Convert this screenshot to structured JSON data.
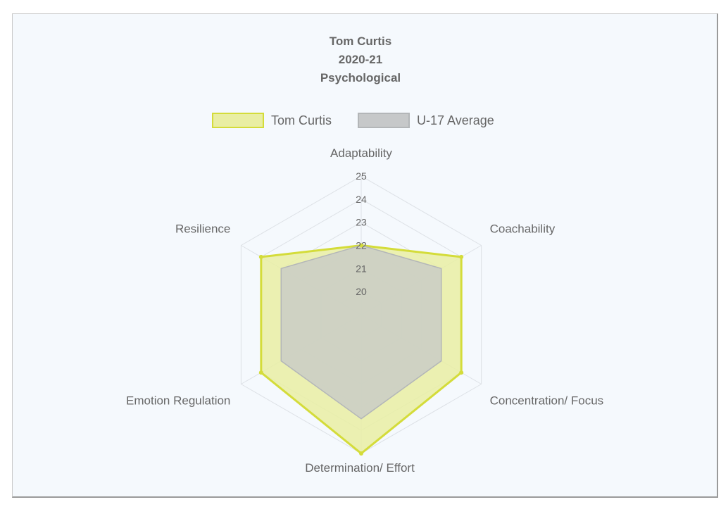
{
  "chart_data": {
    "type": "radar",
    "title_lines": [
      "Tom Curtis",
      "2020-21",
      "Psychological"
    ],
    "axes": [
      "Adaptability",
      "Coachability",
      "Concentration/ Focus",
      "Determination/ Effort",
      "Emotion Regulation",
      "Resilience"
    ],
    "r_min": 19,
    "r_max": 25,
    "ticks": [
      20,
      21,
      22,
      23,
      24,
      25
    ],
    "series": [
      {
        "name": "Tom Curtis",
        "values": [
          22,
          24,
          24,
          25,
          24,
          24
        ],
        "fill": "#e9eea3",
        "stroke": "#d4dc3a"
      },
      {
        "name": "U-17 Average",
        "values": [
          22,
          23,
          23,
          23.5,
          23,
          23
        ],
        "fill": "#c6c8c9",
        "stroke": "#b3b6b8"
      }
    ],
    "legend_position": "top",
    "grid": true
  }
}
